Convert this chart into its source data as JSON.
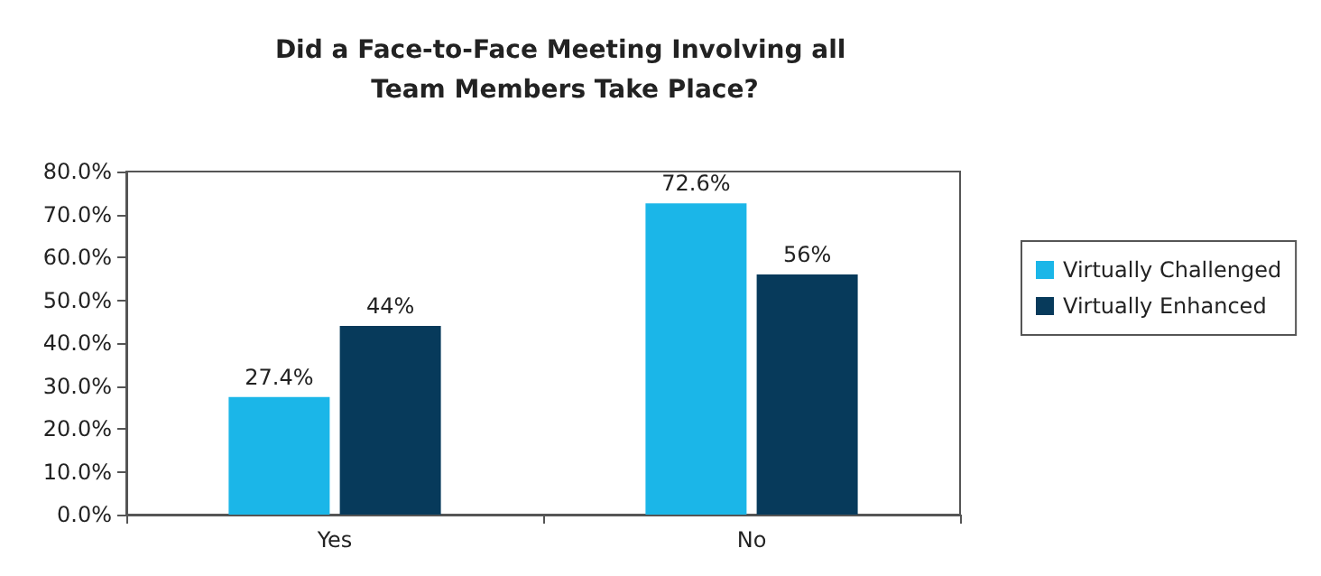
{
  "chart_data": {
    "type": "bar",
    "title": "Did a Face-to-Face Meeting Involving all Team Members Take Place?",
    "categories": [
      "Yes",
      "No"
    ],
    "series": [
      {
        "name": "Virtually Challenged",
        "color": "#1bb6e8",
        "values": [
          27.4,
          72.6
        ],
        "value_labels": [
          "27.4%",
          "72.6%"
        ]
      },
      {
        "name": "Virtually Enhanced",
        "color": "#073a5b",
        "values": [
          44,
          56
        ],
        "value_labels": [
          "44%",
          "56%"
        ]
      }
    ],
    "ylim": [
      0,
      80
    ],
    "yticks": [
      {
        "value": 0,
        "label": "0.0%"
      },
      {
        "value": 10,
        "label": "10.0%"
      },
      {
        "value": 20,
        "label": "20.0%"
      },
      {
        "value": 30,
        "label": "30.0%"
      },
      {
        "value": 40,
        "label": "40.0%"
      },
      {
        "value": 50,
        "label": "50.0%"
      },
      {
        "value": 60,
        "label": "60.0%"
      },
      {
        "value": 70,
        "label": "70.0%"
      },
      {
        "value": 80,
        "label": "80.0%"
      }
    ],
    "grid": false,
    "legend": "right"
  }
}
